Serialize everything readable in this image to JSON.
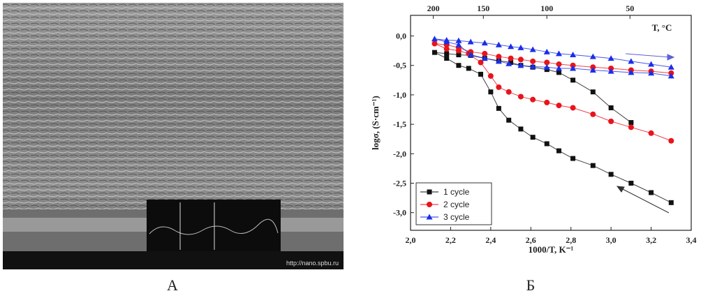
{
  "panel_labels": [
    "А",
    "Б"
  ],
  "sem_image": {
    "url_text": "http://nano.spbu.ru"
  },
  "chart_data": {
    "type": "line",
    "xlabel": "1000/T, K⁻¹",
    "ylabel": "logσ, (S·cm⁻¹)",
    "x2label": "T, °C",
    "xlim": [
      2.0,
      3.4
    ],
    "ylim": [
      -3.3,
      0.35
    ],
    "xticks": [
      {
        "value": 2.0,
        "label": "2,0"
      },
      {
        "value": 2.2,
        "label": "2,2"
      },
      {
        "value": 2.4,
        "label": "2,4"
      },
      {
        "value": 2.6,
        "label": "2,6"
      },
      {
        "value": 2.8,
        "label": "2,8"
      },
      {
        "value": 3.0,
        "label": "3,0"
      },
      {
        "value": 3.2,
        "label": "3,2"
      },
      {
        "value": 3.4,
        "label": "3,4"
      }
    ],
    "yticks": [
      {
        "value": 0,
        "label": "0,0"
      },
      {
        "value": -0.5,
        "label": "-0,5"
      },
      {
        "value": -1.0,
        "label": "-1,0"
      },
      {
        "value": -1.5,
        "label": "-1,5"
      },
      {
        "value": -2.0,
        "label": "-2,0"
      },
      {
        "value": -2.5,
        "label": "-2,5"
      },
      {
        "value": -3.0,
        "label": "-3,0"
      }
    ],
    "x2ticks": [
      200,
      150,
      100,
      50
    ],
    "legend": "lower left",
    "series": [
      {
        "name": "1 cycle",
        "color": "#111111",
        "marker": "square",
        "x": [
          3.3,
          3.2,
          3.1,
          3.0,
          2.91,
          2.81,
          2.74,
          2.68,
          2.61,
          2.55,
          2.49,
          2.44,
          2.4,
          2.35,
          2.29,
          2.24,
          2.18,
          2.12,
          2.18,
          2.24,
          2.3,
          2.37,
          2.44,
          2.5,
          2.55,
          2.61,
          2.68,
          2.74,
          2.81,
          2.91,
          3.0,
          3.1
        ],
        "values": [
          -2.83,
          -2.66,
          -2.5,
          -2.35,
          -2.2,
          -2.08,
          -1.95,
          -1.83,
          -1.72,
          -1.58,
          -1.43,
          -1.23,
          -0.95,
          -0.65,
          -0.55,
          -0.5,
          -0.38,
          -0.28,
          -0.3,
          -0.32,
          -0.33,
          -0.38,
          -0.42,
          -0.45,
          -0.5,
          -0.53,
          -0.57,
          -0.62,
          -0.75,
          -0.95,
          -1.22,
          -1.47
        ]
      },
      {
        "name": "2 cycle",
        "color": "#e8141b",
        "marker": "circle",
        "x": [
          3.3,
          3.2,
          3.1,
          3.0,
          2.91,
          2.81,
          2.74,
          2.68,
          2.61,
          2.55,
          2.49,
          2.44,
          2.4,
          2.35,
          2.29,
          2.24,
          2.18,
          2.12,
          2.18,
          2.24,
          2.3,
          2.37,
          2.44,
          2.5,
          2.55,
          2.61,
          2.68,
          2.74,
          2.81,
          2.91,
          3.0,
          3.1,
          3.2,
          3.3
        ],
        "values": [
          -1.78,
          -1.65,
          -1.55,
          -1.45,
          -1.33,
          -1.22,
          -1.18,
          -1.13,
          -1.08,
          -1.03,
          -0.95,
          -0.87,
          -0.68,
          -0.45,
          -0.3,
          -0.25,
          -0.22,
          -0.13,
          -0.15,
          -0.2,
          -0.27,
          -0.3,
          -0.35,
          -0.38,
          -0.4,
          -0.43,
          -0.45,
          -0.48,
          -0.5,
          -0.53,
          -0.55,
          -0.58,
          -0.6,
          -0.63
        ]
      },
      {
        "name": "3 cycle",
        "color": "#1a2ee8",
        "marker": "triangle",
        "x": [
          3.3,
          3.2,
          3.1,
          3.0,
          2.91,
          2.81,
          2.74,
          2.68,
          2.61,
          2.55,
          2.49,
          2.44,
          2.37,
          2.3,
          2.24,
          2.18,
          2.12,
          2.18,
          2.24,
          2.3,
          2.37,
          2.44,
          2.5,
          2.55,
          2.61,
          2.68,
          2.74,
          2.81,
          2.91,
          3.0,
          3.1,
          3.2,
          3.3
        ],
        "values": [
          -0.68,
          -0.63,
          -0.62,
          -0.6,
          -0.58,
          -0.55,
          -0.55,
          -0.53,
          -0.52,
          -0.5,
          -0.47,
          -0.43,
          -0.38,
          -0.32,
          -0.15,
          -0.1,
          -0.05,
          -0.07,
          -0.08,
          -0.1,
          -0.12,
          -0.15,
          -0.18,
          -0.2,
          -0.23,
          -0.27,
          -0.3,
          -0.32,
          -0.35,
          -0.38,
          -0.43,
          -0.48,
          -0.53
        ]
      }
    ]
  }
}
